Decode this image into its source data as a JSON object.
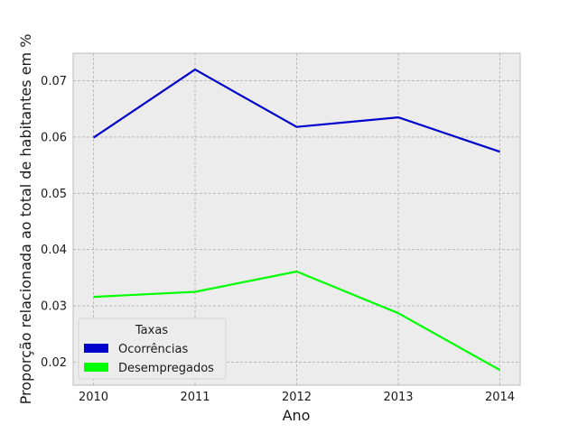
{
  "chart_data": {
    "type": "line",
    "title": "",
    "xlabel": "Ano",
    "ylabel": "Proporção relacionada ao total de habitantes em %",
    "x": [
      2010,
      2011,
      2012,
      2013,
      2014
    ],
    "xlim": [
      2009.8,
      2014.2
    ],
    "ylim": [
      0.0159,
      0.0749
    ],
    "yticks": [
      "0.02",
      "0.03",
      "0.04",
      "0.05",
      "0.06",
      "0.07"
    ],
    "grid": true,
    "legend": {
      "title": "Taxas",
      "position": "lower-left"
    },
    "series": [
      {
        "name": "Ocorrências",
        "color": "#0000cc",
        "values": [
          0.0599,
          0.072,
          0.0618,
          0.0635,
          0.0574
        ]
      },
      {
        "name": "Desempregados",
        "color": "#00ff00",
        "values": [
          0.0316,
          0.0325,
          0.0361,
          0.0287,
          0.0186
        ]
      }
    ]
  }
}
